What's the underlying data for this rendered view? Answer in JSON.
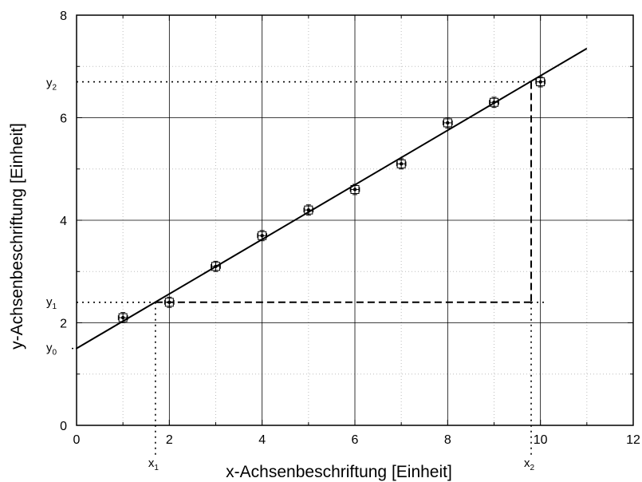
{
  "chart_data": {
    "type": "scatter",
    "xlabel": "x-Achsenbeschriftung [Einheit]",
    "ylabel": "y-Achsenbeschriftung [Einheit]",
    "xlim": [
      0,
      12
    ],
    "ylim": [
      0,
      8
    ],
    "x_ticks": [
      "0",
      "2",
      "4",
      "6",
      "8",
      "10",
      "12"
    ],
    "y_ticks": [
      "0",
      "2",
      "4",
      "6",
      "8"
    ],
    "major_grid": true,
    "minor_grid": true,
    "series": [
      {
        "x": [
          1,
          2,
          3,
          4,
          5,
          6,
          7,
          8,
          9,
          10
        ],
        "y": [
          2.1,
          2.4,
          3.1,
          3.7,
          4.2,
          4.6,
          5.1,
          5.9,
          6.3,
          6.7
        ],
        "x_err": 0.1,
        "y_err": 0.1
      }
    ],
    "fit_line": {
      "x0": 0,
      "y0": 1.5,
      "x1": 11,
      "y1": 7.35
    },
    "markers": {
      "x1": {
        "label": "x",
        "sub": "1",
        "x": 1.7,
        "y": 2.4
      },
      "x2": {
        "label": "x",
        "sub": "2",
        "x": 9.8,
        "y": 6.7
      },
      "y0": {
        "label": "y",
        "sub": "0",
        "y": 1.5
      },
      "y1": {
        "label": "y",
        "sub": "1",
        "y": 2.4
      },
      "y2": {
        "label": "y",
        "sub": "2",
        "y": 6.7
      }
    }
  }
}
